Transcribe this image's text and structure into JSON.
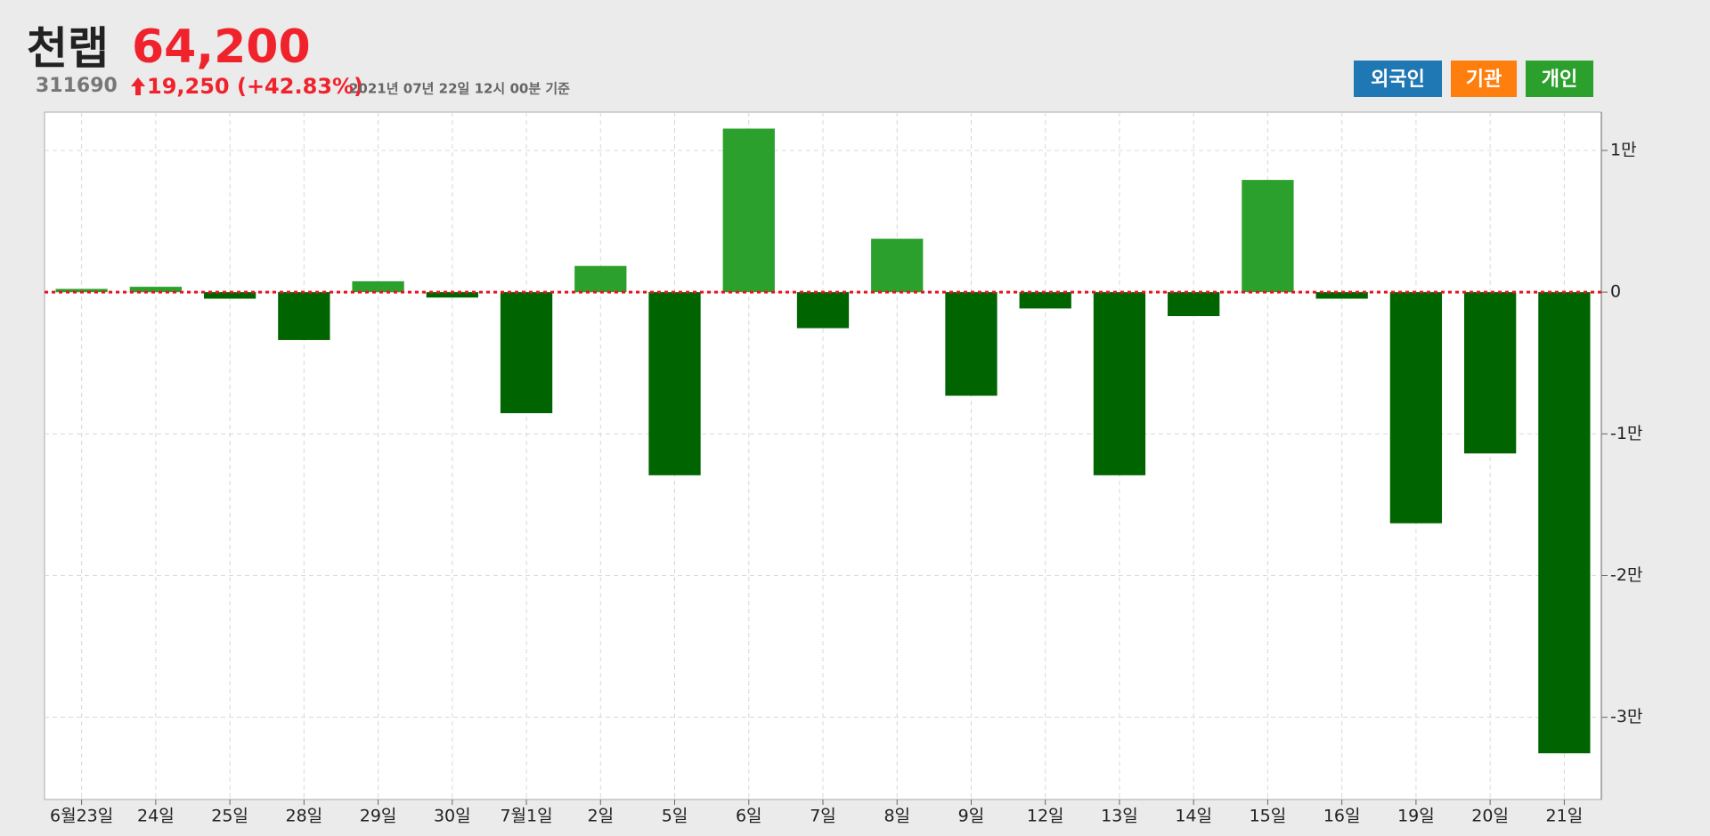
{
  "header": {
    "name": "천랩",
    "price": "64,200",
    "code": "311690",
    "change": "19,250 (+42.83%)",
    "timestamp": "2021년 07년 22일 12시 00분 기준",
    "buttons": [
      {
        "label": "외국인",
        "color": "#1f77b4"
      },
      {
        "label": "기관",
        "color": "#ff7f0e"
      },
      {
        "label": "개인",
        "color": "#2ca02c"
      }
    ]
  },
  "chart_data": {
    "type": "bar",
    "categories": [
      "6월23일",
      "24일",
      "25일",
      "28일",
      "29일",
      "30일",
      "7월1일",
      "2일",
      "5일",
      "6일",
      "7일",
      "8일",
      "9일",
      "12일",
      "13일",
      "14일",
      "15일",
      "16일",
      "19일",
      "20일",
      "21일"
    ],
    "values": [
      230,
      380,
      -460,
      -3380,
      770,
      -380,
      -8540,
      1850,
      -12920,
      11540,
      -2540,
      3770,
      -7310,
      -1150,
      -12920,
      -1690,
      7920,
      -460,
      -16310,
      -11380,
      -32540
    ],
    "color": "#2ca02c",
    "negative_color": "#006400",
    "ylim": [
      -35800,
      12700
    ],
    "yticks": [
      {
        "value": 10000,
        "label": "1만"
      },
      0,
      {
        "value": -10000,
        "label": "-1만"
      },
      {
        "value": -20000,
        "label": "-2만"
      },
      {
        "value": -30000,
        "label": "-3만"
      }
    ],
    "grid": true
  }
}
